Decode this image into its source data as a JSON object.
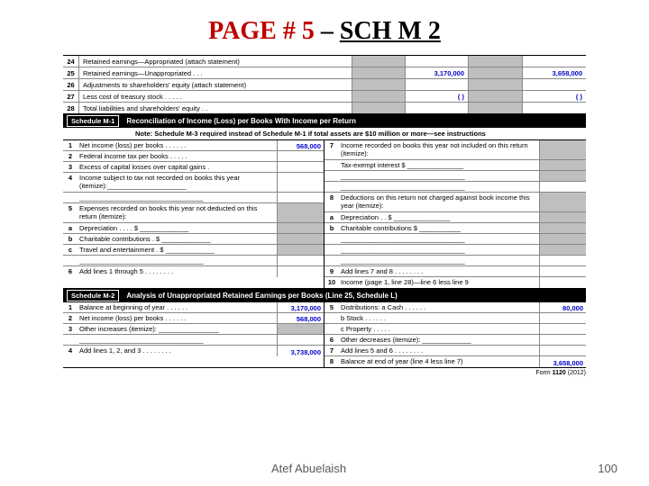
{
  "title": {
    "part1": "PAGE # 5",
    "dash": " – ",
    "part2": "SCH M 2"
  },
  "top_section": {
    "rows": [
      {
        "num": "24",
        "label": "Retained earnings—Appropriated (attach statement)",
        "v1": "",
        "v2": ""
      },
      {
        "num": "25",
        "label": "Retained earnings—Unappropriated  .   .   .",
        "v1": "3,170,000",
        "v2": "3,658,000"
      },
      {
        "num": "26",
        "label": "Adjustments to shareholders' equity (attach statement)",
        "v1": "",
        "v2": ""
      },
      {
        "num": "27",
        "label": "Less cost of treasury stock  .   .   .   .   .",
        "v1": "(                  )",
        "v2": "(                  )"
      },
      {
        "num": "28",
        "label": "Total liabilities and shareholders' equity  .   .",
        "v1": "",
        "v2": ""
      }
    ]
  },
  "m1": {
    "badge": "Schedule M-1",
    "title": "Reconciliation of Income (Loss) per Books With Income per Return",
    "note": "Note: Schedule M-3 required instead of Schedule M-1 if total assets are $10 million or more—see instructions",
    "left": [
      {
        "num": "1",
        "label": "Net income (loss) per books .  .  .  .  .  .",
        "val": "568,000"
      },
      {
        "num": "2",
        "label": "Federal income tax per books .  .  .  .  .",
        "val": ""
      },
      {
        "num": "3",
        "label": "Excess of capital losses over capital gains  .",
        "val": ""
      },
      {
        "num": "4",
        "label": "Income subject to tax not recorded on books this year (itemize):_____________________",
        "val": "",
        "tall": true
      },
      {
        "num": "",
        "label": "",
        "val": "",
        "blank": true
      },
      {
        "num": "5",
        "label": "Expenses recorded on books this year not deducted on this return (itemize):",
        "val": "",
        "tall": true,
        "grey": true
      },
      {
        "num": "a",
        "label": "Depreciation  .  .  .  .  $ _____________",
        "val": "",
        "grey": true
      },
      {
        "num": "b",
        "label": "Charitable contributions  .  $ _____________",
        "val": "",
        "grey": true
      },
      {
        "num": "c",
        "label": "Travel and entertainment  .  $ _____________",
        "val": "",
        "grey": true
      },
      {
        "num": "",
        "label": "",
        "val": "",
        "blank": true
      },
      {
        "num": "6",
        "label": "Add lines 1 through 5 .  .  .  .  .  .  .  .",
        "val": ""
      }
    ],
    "right": [
      {
        "num": "7",
        "label": "Income recorded on books this year not included on this return (itemize):",
        "grey": true,
        "tall": true
      },
      {
        "num": "",
        "label": "Tax-exempt interest  $ _______________",
        "grey": true
      },
      {
        "num": "",
        "label": "",
        "blank": true,
        "grey": true
      },
      {
        "num": "",
        "label": "",
        "val": "",
        "blank": true
      },
      {
        "num": "8",
        "label": "Deductions on this return not charged against book income this year (itemize):",
        "grey": true,
        "tall": true
      },
      {
        "num": "a",
        "label": "Depreciation .  .  $ _______________",
        "grey": true
      },
      {
        "num": "b",
        "label": "Charitable contributions $ ___________",
        "grey": true
      },
      {
        "num": "",
        "label": "",
        "blank": true,
        "grey": true
      },
      {
        "num": "",
        "label": "",
        "blank": true,
        "grey": true
      },
      {
        "num": "",
        "label": "",
        "val": "",
        "blank": true
      },
      {
        "num": "9",
        "label": "Add lines 7 and 8 .  .  .  .  .  .  .  .",
        "val": ""
      },
      {
        "num": "10",
        "label": "Income (page 1, line 28)—line 6 less line 9",
        "val": ""
      }
    ]
  },
  "m2": {
    "badge": "Schedule M-2",
    "title": "Analysis of Unappropriated Retained Earnings per Books (Line 25, Schedule L)",
    "left": [
      {
        "num": "1",
        "label": "Balance at beginning of year .  .  .  .  .  .",
        "val": "3,170,000"
      },
      {
        "num": "2",
        "label": "Net income (loss) per books .  .  .  .  .  .",
        "val": "568,000"
      },
      {
        "num": "3",
        "label": "Other increases (itemize): ________________",
        "val": "",
        "grey": true
      },
      {
        "num": "",
        "label": "",
        "val": "",
        "blank": true
      },
      {
        "num": "4",
        "label": "Add lines 1, 2, and 3 .  .  .  .  .  .  .  .",
        "val": "3,738,000"
      }
    ],
    "right": [
      {
        "num": "5",
        "label": "Distributions:  a Cash  .  .  .  .  .  .",
        "val": "80,000"
      },
      {
        "num": "",
        "label": "                       b Stock .  .  .  .  .  .",
        "val": ""
      },
      {
        "num": "",
        "label": "                       c Property .  .  .  .  .",
        "val": ""
      },
      {
        "num": "6",
        "label": "Other decreases (itemize): _____________",
        "val": ""
      },
      {
        "num": "7",
        "label": "Add lines 5 and 6 .  .  .  .  .  .  .  .",
        "val": ""
      },
      {
        "num": "8",
        "label": "Balance at end of year (line 4 less line 7)",
        "val": "3,658,000"
      }
    ]
  },
  "form_footer": {
    "text": "Form ",
    "num": "1120",
    "year": " (2012)"
  },
  "footer": {
    "author": "Atef Abuelaish",
    "page": "100"
  },
  "colors": {
    "title_red": "#c00000",
    "value_blue": "#0000cc",
    "grey_cell": "#bfbfbf",
    "footer_grey": "#595959"
  }
}
